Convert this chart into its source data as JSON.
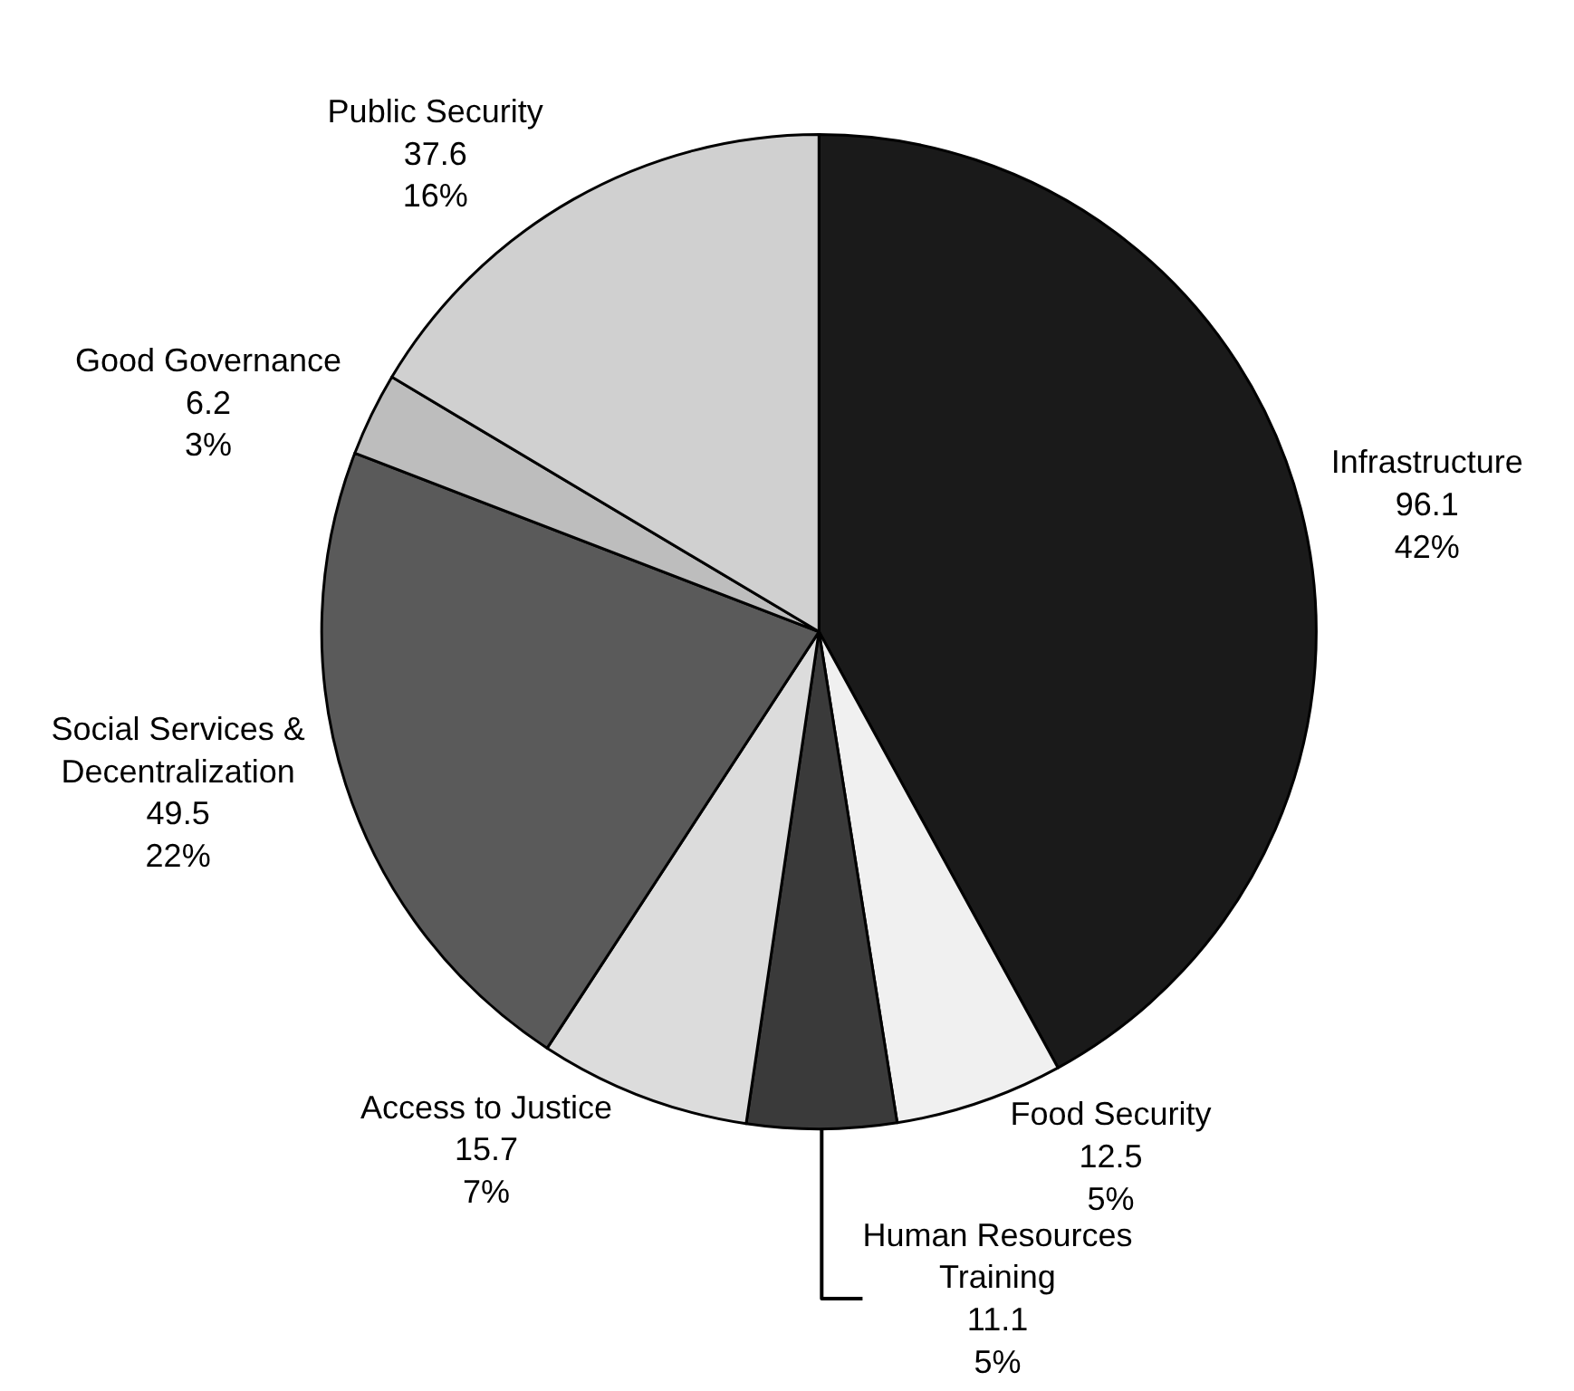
{
  "chart_data": {
    "type": "pie",
    "categories": [
      "Infrastructure",
      "Food Security",
      "Human Resources\nTraining",
      "Access to Justice",
      "Social Services &\nDecentralization",
      "Good Governance",
      "Public Security"
    ],
    "values": [
      96.1,
      12.5,
      11.1,
      15.7,
      49.5,
      6.2,
      37.6
    ],
    "value_labels": [
      "96.1\n42%",
      "12.5\n5%",
      "11.1\n5%",
      "15.7\n7%",
      "49.5\n22%",
      "6.2\n3%",
      "37.6\n16%"
    ],
    "colors": [
      "#1a1a1a",
      "#f0f0f0",
      "#3a3a3a",
      "#dcdcdc",
      "#5a5a5a",
      "#bdbdbd",
      "#d0d0d0"
    ],
    "legend": false
  }
}
